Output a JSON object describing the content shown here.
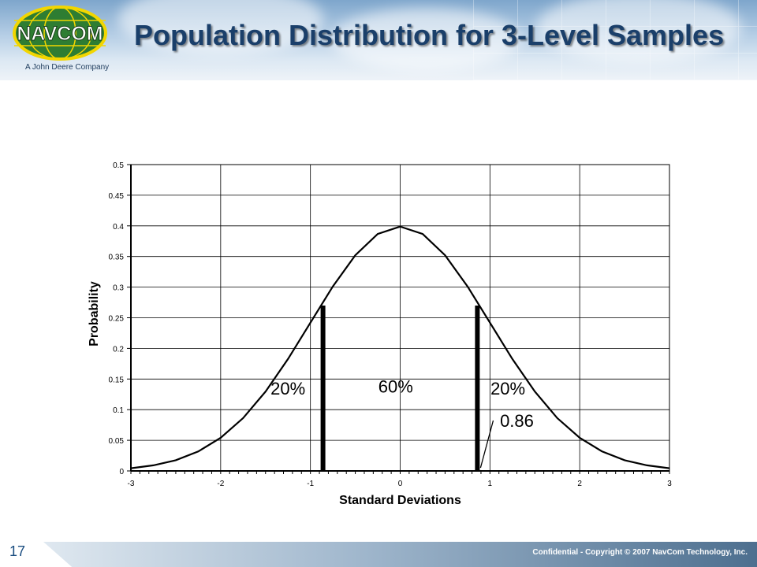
{
  "header": {
    "logo_text": "NAVCOM",
    "subbrand": "A John Deere Company",
    "title": "Population Distribution for 3-Level Samples"
  },
  "colors": {
    "title": "#1a3f6a",
    "logo_green": "#2e7d32",
    "logo_yellow": "#f2d600",
    "curve": "#000000"
  },
  "chart_data": {
    "type": "line",
    "title": "",
    "xlabel": "Standard Deviations",
    "ylabel": "Probability",
    "xlim": [
      -3,
      3
    ],
    "ylim": [
      0,
      0.5
    ],
    "x_ticks": [
      -3,
      -2,
      -1,
      0,
      1,
      2,
      3
    ],
    "x_tick_labels": [
      "-3",
      "-2",
      "-1",
      "0",
      "1",
      "2",
      "3"
    ],
    "y_ticks": [
      0,
      0.05,
      0.1,
      0.15,
      0.2,
      0.25,
      0.3,
      0.35,
      0.4,
      0.45,
      0.5
    ],
    "y_tick_labels": [
      "0",
      "0.05",
      "0.1",
      "0.15",
      "0.2",
      "0.25",
      "0.3",
      "0.35",
      "0.4",
      "0.45",
      "0.5"
    ],
    "grid": true,
    "series": [
      {
        "x": [
          -3,
          -2.75,
          -2.5,
          -2.25,
          -2,
          -1.75,
          -1.5,
          -1.25,
          -1,
          -0.75,
          -0.5,
          -0.25,
          0,
          0.25,
          0.5,
          0.75,
          1,
          1.25,
          1.5,
          1.75,
          2,
          2.25,
          2.5,
          2.75,
          3
        ],
        "y": [
          0.0044,
          0.0091,
          0.0175,
          0.0317,
          0.054,
          0.0863,
          0.1295,
          0.1826,
          0.242,
          0.3011,
          0.3521,
          0.3867,
          0.3989,
          0.3867,
          0.3521,
          0.3011,
          0.242,
          0.1826,
          0.1295,
          0.0863,
          0.054,
          0.0317,
          0.0175,
          0.0091,
          0.0044
        ]
      }
    ],
    "cutoffs": [
      {
        "x": -0.86,
        "y": 0.27
      },
      {
        "x": 0.86,
        "y": 0.27
      }
    ],
    "annotations": [
      {
        "text": "20%",
        "x": -1.25,
        "y": 0.125
      },
      {
        "text": "60%",
        "x": -0.05,
        "y": 0.128
      },
      {
        "text": "20%",
        "x": 1.2,
        "y": 0.125
      },
      {
        "text": "0.86",
        "x": 1.3,
        "y": 0.072,
        "arrow_to": {
          "x": 0.86,
          "y": 0
        }
      }
    ]
  },
  "footer": {
    "page_number": "17",
    "text": "Confidential - Copyright © 2007 NavCom Technology, Inc."
  }
}
